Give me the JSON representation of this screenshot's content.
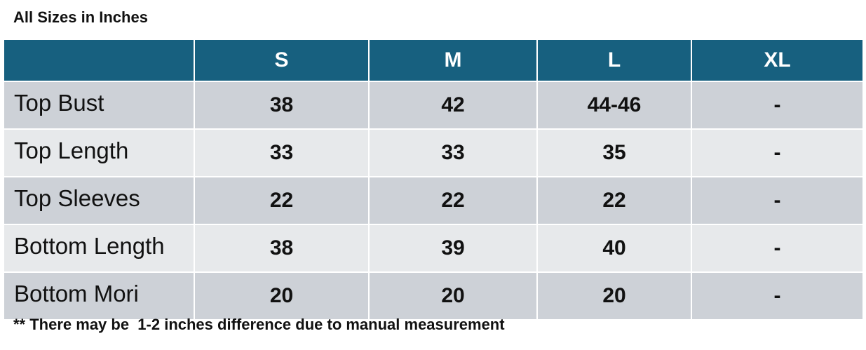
{
  "title": "All Sizes in Inches",
  "table": {
    "columns": [
      "S",
      "M",
      "L",
      "XL"
    ],
    "rows": [
      {
        "label": "Top Bust",
        "cells": [
          "38",
          "42",
          "44-46",
          "-"
        ]
      },
      {
        "label": "Top Length",
        "cells": [
          "33",
          "33",
          "35",
          "-"
        ]
      },
      {
        "label": "Top Sleeves",
        "cells": [
          "22",
          "22",
          "22",
          "-"
        ]
      },
      {
        "label": "Bottom Length",
        "cells": [
          "38",
          "39",
          "40",
          "-"
        ]
      },
      {
        "label": "Bottom Mori",
        "cells": [
          "20",
          "20",
          "20",
          "-"
        ]
      }
    ]
  },
  "footnote": "** There may be  1-2 inches difference due to manual measurement"
}
